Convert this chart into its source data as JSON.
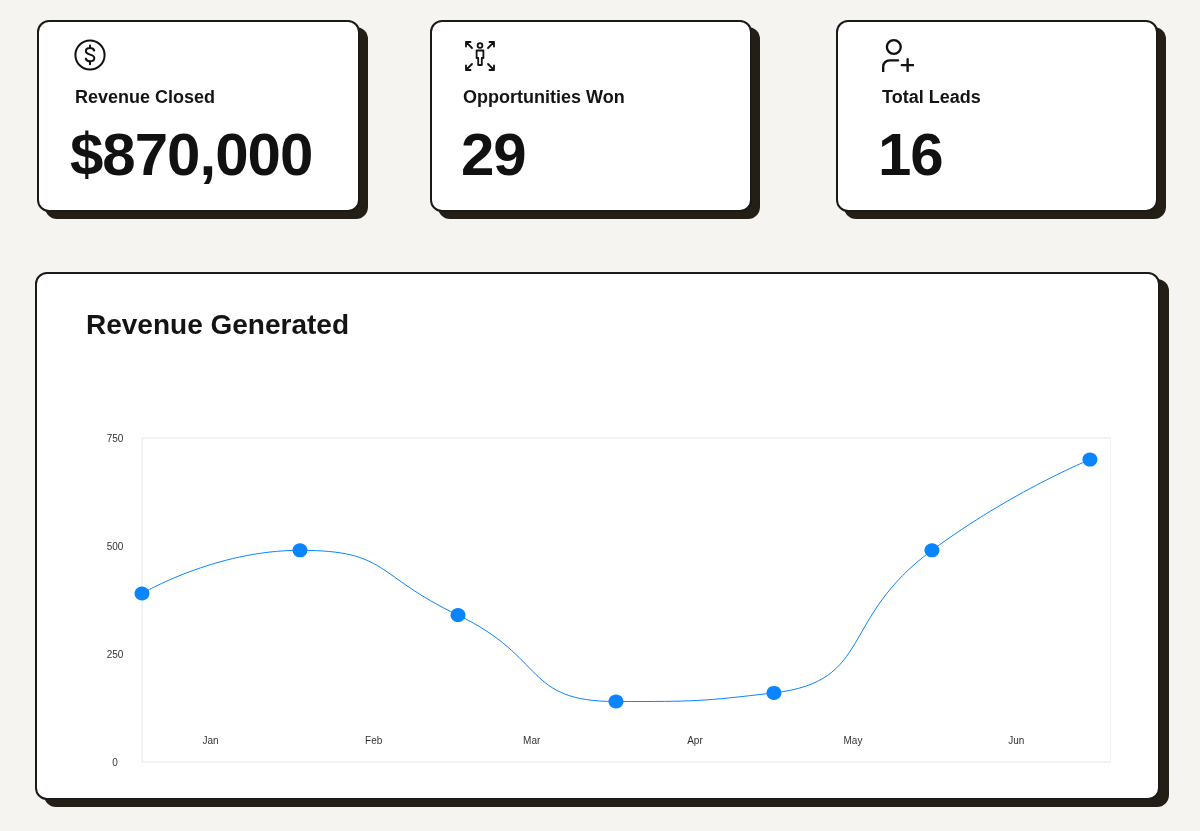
{
  "chart_data": [
    {
      "type": "other",
      "title": "Revenue Closed",
      "annotations": [
        "$870,000"
      ]
    },
    {
      "type": "other",
      "title": "Opportunities Won",
      "annotations": [
        "29"
      ]
    },
    {
      "type": "other",
      "title": "Total Leads",
      "annotations": [
        "16"
      ]
    },
    {
      "type": "line",
      "title": "Revenue Generated",
      "x": [
        "--01-01",
        "--01-31",
        "--03-02",
        "--04-01",
        "--05-01",
        "--05-31",
        "--06-30"
      ],
      "values": [
        390,
        490,
        340,
        140,
        160,
        490,
        700
      ],
      "color": "#0a84ff",
      "xlim": [
        "--01-01",
        "--07-04"
      ],
      "xticks": [
        {
          "value": "--01-14",
          "label": "Jan"
        },
        {
          "value": "--02-14",
          "label": "Feb"
        },
        {
          "value": "--03-16",
          "label": "Mar"
        },
        {
          "value": "--04-16",
          "label": "Apr"
        },
        {
          "value": "--05-16",
          "label": "May"
        },
        {
          "value": "--06-16",
          "label": "Jun"
        }
      ],
      "ylim": [
        0,
        750
      ],
      "yticks": [
        0,
        250,
        500,
        750
      ],
      "grid": false,
      "marker": "circle",
      "line_style": "solid"
    }
  ]
}
